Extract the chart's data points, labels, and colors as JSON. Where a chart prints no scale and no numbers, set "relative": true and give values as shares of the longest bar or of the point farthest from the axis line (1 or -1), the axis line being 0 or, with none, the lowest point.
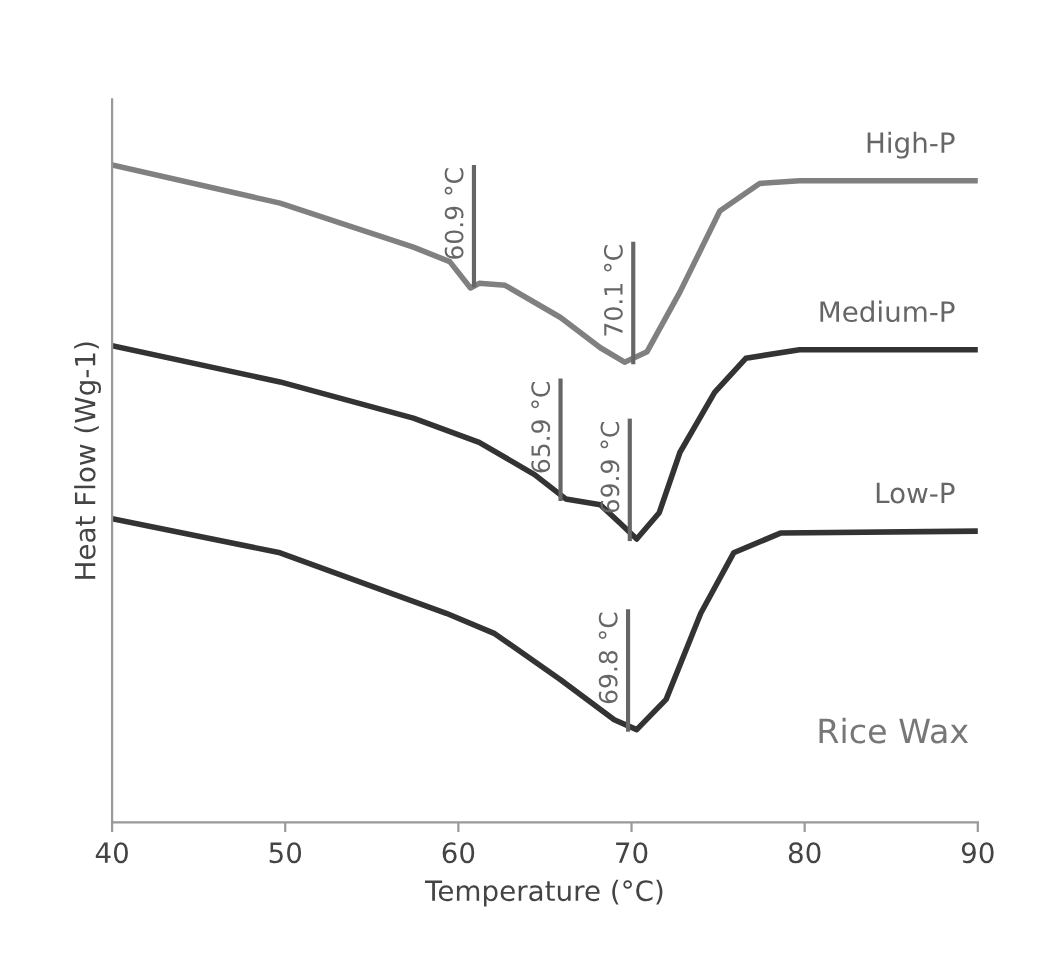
{
  "chart_data": {
    "type": "line",
    "relative": true,
    "xlabel": "Temperature (°C)",
    "ylabel": "Heat Flow (Wg-1)",
    "xlim": [
      40,
      90
    ],
    "xticks": [
      40,
      50,
      60,
      70,
      80,
      90
    ],
    "grid": false,
    "legend": false,
    "tick_labels": "x",
    "series": [
      {
        "name": "High-P",
        "color": "#808080",
        "x": [
          40,
          49.7,
          57.4,
          59.5,
          60.7,
          61.2,
          62.7,
          65.9,
          68.2,
          69.6,
          70.9,
          72.8,
          75.1,
          77.4,
          79.7,
          90
        ],
        "values": [
          1.0,
          0.942,
          0.875,
          0.853,
          0.813,
          0.82,
          0.817,
          0.768,
          0.722,
          0.7,
          0.716,
          0.807,
          0.93,
          0.972,
          0.976,
          0.976
        ]
      },
      {
        "name": "Medium-P",
        "color": "#333333",
        "x": [
          40,
          49.7,
          57.4,
          61.2,
          64.4,
          66.2,
          68.2,
          69.3,
          70.3,
          71.6,
          72.8,
          74.8,
          76.6,
          79.7,
          90
        ],
        "values": [
          0.725,
          0.67,
          0.615,
          0.578,
          0.529,
          0.492,
          0.483,
          0.456,
          0.431,
          0.471,
          0.563,
          0.654,
          0.706,
          0.719,
          0.719
        ]
      },
      {
        "name": "Low-P",
        "color": "#333333",
        "x": [
          40,
          49.7,
          59.3,
          62.1,
          65.9,
          69.0,
          70.3,
          72.0,
          74.0,
          75.9,
          78.6,
          90
        ],
        "values": [
          0.462,
          0.41,
          0.318,
          0.287,
          0.217,
          0.156,
          0.141,
          0.187,
          0.318,
          0.41,
          0.44,
          0.443
        ]
      }
    ],
    "annotations": [
      {
        "text": "60.9 °C",
        "x": 60.9,
        "y": 0.817
      },
      {
        "text": "70.1 °C",
        "x": 70.1,
        "y": 0.7
      },
      {
        "text": "65.9 °C",
        "x": 65.9,
        "y": 0.492
      },
      {
        "text": "69.9 °C",
        "x": 69.9,
        "y": 0.431
      },
      {
        "text": "69.8 °C",
        "x": 69.8,
        "y": 0.141
      },
      "Rice Wax"
    ]
  }
}
